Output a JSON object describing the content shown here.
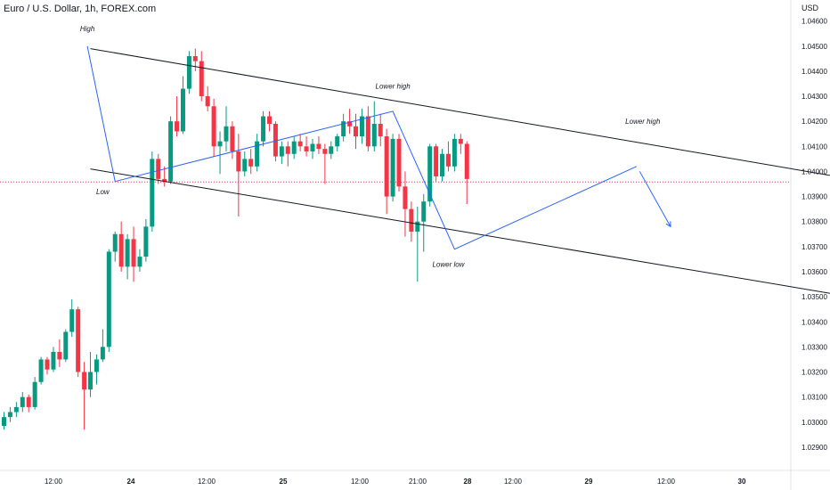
{
  "header": {
    "symbol_title": "Euro / U.S. Dollar, 1h, FOREX.com",
    "currency_label": "USD"
  },
  "colors": {
    "up": "#089981",
    "down": "#f23645",
    "channel": "#131722",
    "path": "#2962ff",
    "grid": "#ffffff",
    "price_line": "#f23645",
    "axis_text": "#131722"
  },
  "chart_data": {
    "type": "candlestick",
    "title": "Euro / U.S. Dollar, 1h, FOREX.com",
    "ylabel": "USD",
    "ylim": [
      1.0285,
      1.0462
    ],
    "y_ticks": [
      "1.04600",
      "1.04500",
      "1.04400",
      "1.04300",
      "1.04200",
      "1.04100",
      "1.04000",
      "1.03900",
      "1.03800",
      "1.03700",
      "1.03600",
      "1.03500",
      "1.03400",
      "1.03300",
      "1.03200",
      "1.03100",
      "1.03000",
      "1.02900"
    ],
    "x_ticks": [
      "12:00",
      "24",
      "12:00",
      "25",
      "12:00",
      "21:00",
      "28",
      "12:00",
      "29",
      "12:00",
      "30"
    ],
    "last_price": 1.03958,
    "candles": [
      [
        1.02985,
        1.0304,
        1.0297,
        1.0302
      ],
      [
        1.0302,
        1.0306,
        1.03,
        1.0304
      ],
      [
        1.0304,
        1.0308,
        1.0302,
        1.0306
      ],
      [
        1.0306,
        1.0312,
        1.0304,
        1.031
      ],
      [
        1.031,
        1.0311,
        1.0304,
        1.0306
      ],
      [
        1.0306,
        1.0318,
        1.0305,
        1.0316
      ],
      [
        1.0316,
        1.0326,
        1.0315,
        1.0325
      ],
      [
        1.0325,
        1.0326,
        1.0319,
        1.0321
      ],
      [
        1.0321,
        1.033,
        1.032,
        1.0328
      ],
      [
        1.0328,
        1.0333,
        1.0322,
        1.0325
      ],
      [
        1.0325,
        1.0337,
        1.0324,
        1.0336
      ],
      [
        1.0336,
        1.0349,
        1.0334,
        1.0345
      ],
      [
        1.0345,
        1.0346,
        1.0318,
        1.032
      ],
      [
        1.032,
        1.0324,
        1.0297,
        1.0313
      ],
      [
        1.0313,
        1.0328,
        1.031,
        1.032
      ],
      [
        1.032,
        1.0327,
        1.0315,
        1.0325
      ],
      [
        1.0325,
        1.0337,
        1.0324,
        1.033
      ],
      [
        1.033,
        1.0369,
        1.0328,
        1.0368
      ],
      [
        1.0368,
        1.0376,
        1.0364,
        1.0375
      ],
      [
        1.0375,
        1.038,
        1.036,
        1.0362
      ],
      [
        1.0362,
        1.0375,
        1.0357,
        1.0373
      ],
      [
        1.0373,
        1.0378,
        1.0356,
        1.0362
      ],
      [
        1.0362,
        1.0369,
        1.036,
        1.0366
      ],
      [
        1.0366,
        1.0381,
        1.0364,
        1.0378
      ],
      [
        1.0378,
        1.0408,
        1.0376,
        1.0405
      ],
      [
        1.0405,
        1.0407,
        1.0395,
        1.0397
      ],
      [
        1.0397,
        1.0402,
        1.0394,
        1.0396
      ],
      [
        1.0396,
        1.0422,
        1.0395,
        1.042
      ],
      [
        1.042,
        1.043,
        1.0414,
        1.0416
      ],
      [
        1.0416,
        1.0438,
        1.0415,
        1.0433
      ],
      [
        1.0433,
        1.0448,
        1.0431,
        1.0446
      ],
      [
        1.0446,
        1.0449,
        1.044,
        1.0444
      ],
      [
        1.0444,
        1.0448,
        1.0428,
        1.043
      ],
      [
        1.043,
        1.0434,
        1.0424,
        1.0426
      ],
      [
        1.0426,
        1.0429,
        1.0406,
        1.041
      ],
      [
        1.041,
        1.0416,
        1.0399,
        1.0412
      ],
      [
        1.0412,
        1.0426,
        1.0408,
        1.0418
      ],
      [
        1.0418,
        1.042,
        1.0405,
        1.0408
      ],
      [
        1.0408,
        1.0415,
        1.0382,
        1.04
      ],
      [
        1.04,
        1.0408,
        1.0398,
        1.0405
      ],
      [
        1.0405,
        1.0409,
        1.0399,
        1.0402
      ],
      [
        1.0402,
        1.0415,
        1.04,
        1.0412
      ],
      [
        1.0412,
        1.0424,
        1.041,
        1.0422
      ],
      [
        1.0422,
        1.0424,
        1.0416,
        1.0419
      ],
      [
        1.0419,
        1.042,
        1.0404,
        1.0406
      ],
      [
        1.0406,
        1.0412,
        1.0403,
        1.041
      ],
      [
        1.041,
        1.0412,
        1.0402,
        1.0407
      ],
      [
        1.0407,
        1.0414,
        1.0405,
        1.0412
      ],
      [
        1.0412,
        1.0415,
        1.0408,
        1.041
      ],
      [
        1.041,
        1.0414,
        1.0406,
        1.0408
      ],
      [
        1.0408,
        1.0413,
        1.0405,
        1.0411
      ],
      [
        1.0411,
        1.0414,
        1.0407,
        1.0409
      ],
      [
        1.0409,
        1.0411,
        1.0395,
        1.0407
      ],
      [
        1.0407,
        1.0412,
        1.0405,
        1.041
      ],
      [
        1.041,
        1.0415,
        1.0408,
        1.0414
      ],
      [
        1.0414,
        1.0423,
        1.0412,
        1.042
      ],
      [
        1.042,
        1.0425,
        1.0415,
        1.0418
      ],
      [
        1.0418,
        1.0423,
        1.0409,
        1.0414
      ],
      [
        1.0414,
        1.0425,
        1.0411,
        1.0422
      ],
      [
        1.0422,
        1.0426,
        1.0408,
        1.041
      ],
      [
        1.041,
        1.0428,
        1.0408,
        1.0419
      ],
      [
        1.0419,
        1.0423,
        1.041,
        1.0414
      ],
      [
        1.0414,
        1.0417,
        1.0383,
        1.039
      ],
      [
        1.039,
        1.0415,
        1.0388,
        1.0413
      ],
      [
        1.0413,
        1.0415,
        1.0392,
        1.0394
      ],
      [
        1.0394,
        1.04,
        1.0374,
        1.0385
      ],
      [
        1.0385,
        1.0388,
        1.0372,
        1.0376
      ],
      [
        1.0376,
        1.0386,
        1.0356,
        1.038
      ],
      [
        1.038,
        1.0391,
        1.0368,
        1.0388
      ],
      [
        1.0388,
        1.0411,
        1.0386,
        1.041
      ],
      [
        1.041,
        1.0411,
        1.0396,
        1.0398
      ],
      [
        1.0398,
        1.0409,
        1.0396,
        1.0407
      ],
      [
        1.0407,
        1.0412,
        1.04,
        1.0402
      ],
      [
        1.0402,
        1.0415,
        1.04,
        1.0413
      ],
      [
        1.0413,
        1.0415,
        1.0407,
        1.0411
      ],
      [
        1.0411,
        1.0412,
        1.0387,
        1.0397
      ]
    ],
    "channel_lines": [
      {
        "from": {
          "x": "23 10:00",
          "y": 1.0449
        },
        "to": {
          "x": "28 18:00",
          "y": 1.0395
        }
      },
      {
        "from": {
          "x": "23 10:00",
          "y": 1.0401
        },
        "to": {
          "x": "28 18:00",
          "y": 1.0348
        }
      }
    ],
    "wave_path": [
      {
        "x": "23 09:30",
        "y": 1.045
      },
      {
        "x": "23 14:00",
        "y": 1.0396
      },
      {
        "x": "25 11:00",
        "y": 1.0424
      },
      {
        "x": "25 21:00",
        "y": 1.0369
      },
      {
        "x": "27 02:30",
        "y": 1.0402
      }
    ],
    "projection_arrow": {
      "from": {
        "x": "27 03:00",
        "y": 1.04
      },
      "to": {
        "x": "27 08:00",
        "y": 1.0378
      }
    },
    "annotations": [
      {
        "text": "High",
        "x": "23 09:30",
        "y": 1.0456
      },
      {
        "text": "Low",
        "x": "23 12:00",
        "y": 1.0391
      },
      {
        "text": "Lower high",
        "x": "25 11:00",
        "y": 1.0433
      },
      {
        "text": "Lower high",
        "x": "27 03:30",
        "y": 1.0419
      },
      {
        "text": "Lower low",
        "x": "25 20:00",
        "y": 1.0362
      }
    ]
  }
}
